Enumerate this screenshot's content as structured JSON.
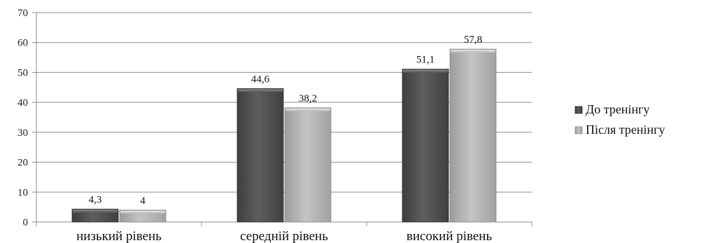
{
  "chart_data": {
    "type": "bar",
    "categories": [
      "низький рівень",
      "середній рівень",
      "високий рівень"
    ],
    "series": [
      {
        "name": "До тренінгу",
        "values": [
          4.3,
          44.6,
          51.1
        ],
        "labels": [
          "4,3",
          "44,6",
          "51,1"
        ],
        "color": "#555555"
      },
      {
        "name": "Після тренінгу",
        "values": [
          4.0,
          38.2,
          57.8
        ],
        "labels": [
          "4",
          "38,2",
          "57,8"
        ],
        "color": "#b0b0b0"
      }
    ],
    "ylim": [
      0,
      70
    ],
    "yticks": [
      0,
      10,
      20,
      30,
      40,
      50,
      60,
      70
    ],
    "ytick_labels": [
      "0",
      "10",
      "20",
      "30",
      "40",
      "50",
      "60",
      "70"
    ],
    "grid": true,
    "legend_position": "right",
    "title": "",
    "xlabel": "",
    "ylabel": ""
  }
}
